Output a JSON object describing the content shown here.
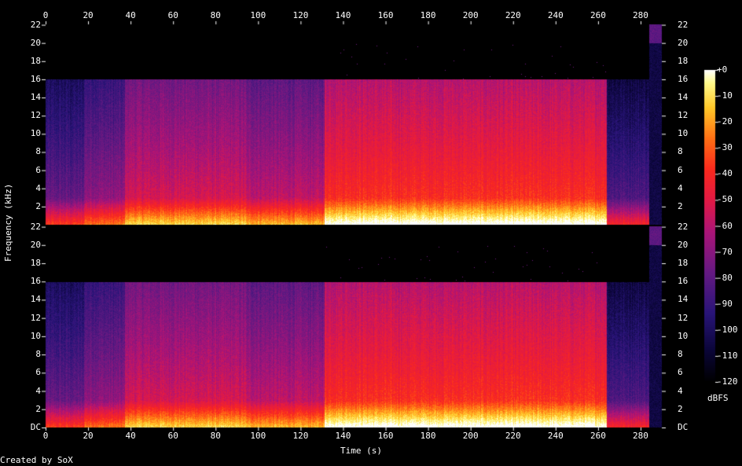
{
  "chart_data": {
    "type": "heatmap",
    "title": "",
    "xlabel": "Time (s)",
    "ylabel": "Frequency (kHz)",
    "colorbar_label": "dBFS",
    "credit": "Created by SoX",
    "x_range": [
      0,
      290
    ],
    "y_range_khz": [
      0,
      22.05
    ],
    "x_ticks": [
      "0",
      "20",
      "40",
      "60",
      "80",
      "100",
      "120",
      "140",
      "160",
      "180",
      "200",
      "220",
      "240",
      "260",
      "280"
    ],
    "y_ticks_top": [
      "2",
      "4",
      "6",
      "8",
      "10",
      "12",
      "14",
      "16",
      "18",
      "20",
      "22"
    ],
    "y_ticks_bottom": [
      "DC",
      "2",
      "4",
      "6",
      "8",
      "10",
      "12",
      "14",
      "16",
      "18",
      "20",
      "22"
    ],
    "colorbar_ticks": [
      "+0",
      "-10",
      "-20",
      "-30",
      "-40",
      "-50",
      "-60",
      "-70",
      "-80",
      "-90",
      "-100",
      "-110",
      "-120"
    ],
    "colorbar_range_db": [
      -120,
      0
    ],
    "channels": [
      {
        "name": "",
        "lowpass_cutoff_khz": 16
      },
      {
        "name": "",
        "lowpass_cutoff_khz": 16
      }
    ],
    "segments": [
      {
        "start_s": 0,
        "end_s": 18,
        "description_level_db": -95
      },
      {
        "start_s": 18,
        "end_s": 37,
        "description_level_db": -85
      },
      {
        "start_s": 37,
        "end_s": 94,
        "description_level_db": -70
      },
      {
        "start_s": 94,
        "end_s": 131,
        "description_level_db": -75
      },
      {
        "start_s": 131,
        "end_s": 264,
        "description_level_db": -55
      },
      {
        "start_s": 264,
        "end_s": 284,
        "description_level_db": -100
      },
      {
        "start_s": 284,
        "end_s": 290,
        "description_level_db": -110
      }
    ],
    "colors": {
      "background": "#000000",
      "text": "#ffffff"
    }
  }
}
